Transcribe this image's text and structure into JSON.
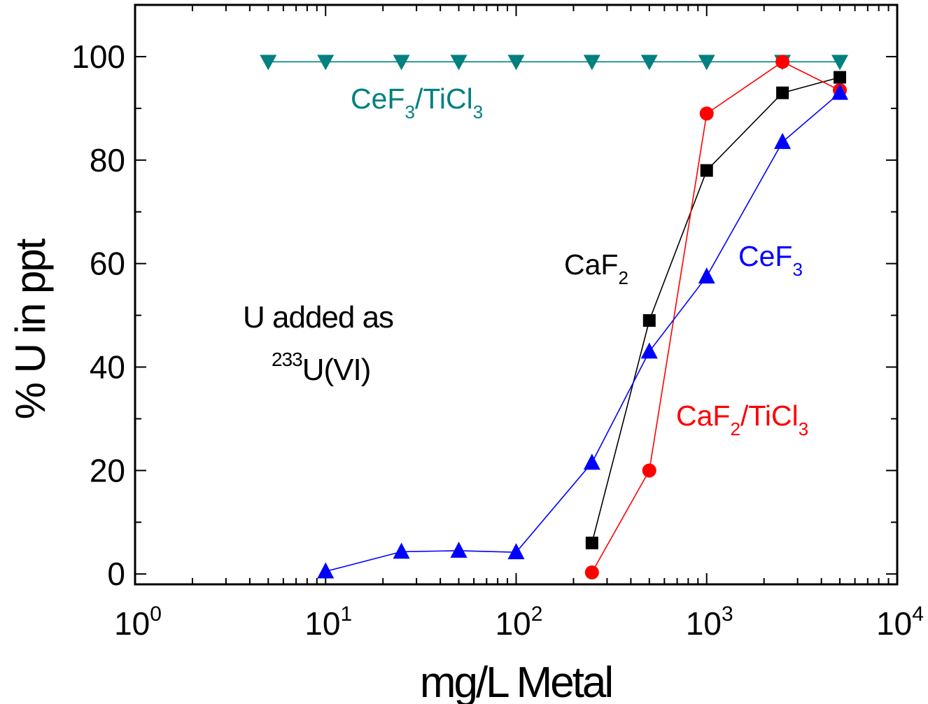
{
  "chart_data": {
    "type": "scatter",
    "xscale": "log",
    "xlim": [
      1,
      10000
    ],
    "ylim": [
      -2,
      110
    ],
    "xlabel": "mg/L Metal",
    "ylabel": "% U in ppt",
    "xticks": [
      {
        "value": 1,
        "base": "10",
        "exp": "0"
      },
      {
        "value": 10,
        "base": "10",
        "exp": "1"
      },
      {
        "value": 100,
        "base": "10",
        "exp": "2"
      },
      {
        "value": 1000,
        "base": "10",
        "exp": "3"
      },
      {
        "value": 10000,
        "base": "10",
        "exp": "4"
      }
    ],
    "yticks": [
      0,
      20,
      40,
      60,
      80,
      100
    ],
    "grid": false,
    "series": [
      {
        "key": "cef3-ticl3",
        "color": "#008080",
        "marker": "triangle-down",
        "x": [
          5,
          10,
          25,
          50,
          100,
          250,
          500,
          1000,
          2500,
          5000
        ],
        "y": [
          99,
          99,
          99,
          99,
          99,
          99,
          99,
          99,
          99,
          99
        ]
      },
      {
        "key": "caf2",
        "color": "#000000",
        "marker": "square",
        "x": [
          250,
          500,
          1000,
          2500,
          5000
        ],
        "y": [
          6,
          49,
          78,
          93,
          96
        ]
      },
      {
        "key": "caf2-ticl3",
        "color": "#ff0000",
        "marker": "circle",
        "x": [
          250,
          500,
          1000,
          2500,
          5000
        ],
        "y": [
          0.3,
          20,
          89,
          99,
          93.5
        ]
      },
      {
        "key": "cef3",
        "color": "#0000ff",
        "marker": "triangle-up",
        "x": [
          10,
          25,
          50,
          100,
          250,
          500,
          1000,
          2500,
          5000
        ],
        "y": [
          0.5,
          4.3,
          4.5,
          4.2,
          21.5,
          43,
          57.5,
          83.5,
          93
        ]
      }
    ],
    "annotations": {
      "cef3_ticl3": {
        "a": "CeF",
        "b": "3",
        "c": "/TiCl",
        "d": "3",
        "color": "#008080"
      },
      "caf2": {
        "a": "CaF",
        "b": "2",
        "color": "#000000"
      },
      "cef3": {
        "a": "CeF",
        "b": "3",
        "color": "#0000ff"
      },
      "caf2_ticl3": {
        "a": "CaF",
        "b": "2",
        "c": "/TiCl",
        "d": "3",
        "color": "#ff0000"
      },
      "note_line1": "U added as",
      "note_iso": "233",
      "note_line2": "U(VI)"
    }
  }
}
